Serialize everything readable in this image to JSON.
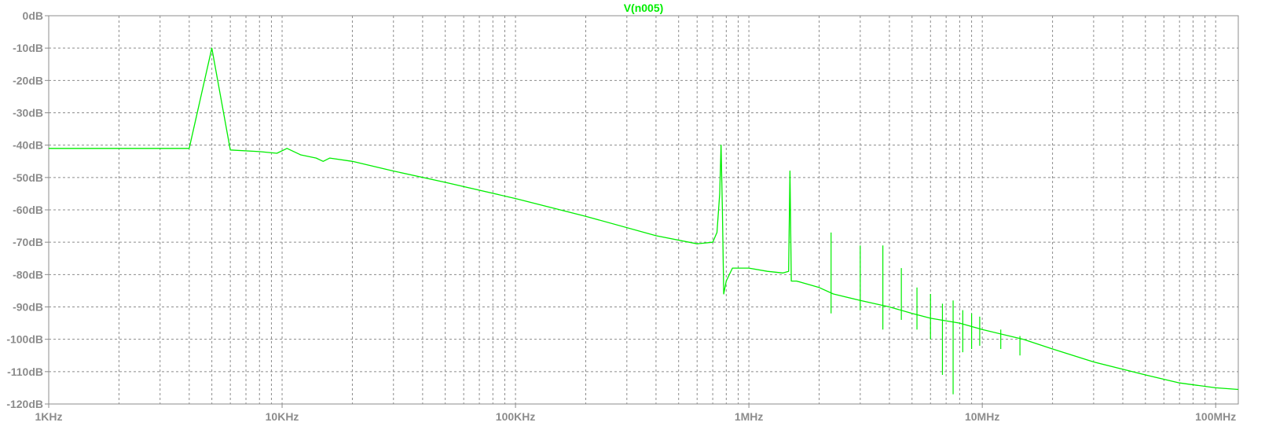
{
  "chart_data": {
    "type": "line",
    "title": "V(n005)",
    "x_scale": "log",
    "xlim": [
      1000,
      125000000
    ],
    "ylim": [
      -120,
      0
    ],
    "grid": true,
    "x_ticks": [
      {
        "value": 1000,
        "label": "1KHz"
      },
      {
        "value": 10000,
        "label": "10KHz"
      },
      {
        "value": 100000,
        "label": "100KHz"
      },
      {
        "value": 1000000,
        "label": "1MHz"
      },
      {
        "value": 10000000,
        "label": "10MHz"
      },
      {
        "value": 100000000,
        "label": "100MHz"
      }
    ],
    "y_ticks": [
      {
        "value": 0,
        "label": "0dB"
      },
      {
        "value": -10,
        "label": "-10dB"
      },
      {
        "value": -20,
        "label": "-20dB"
      },
      {
        "value": -30,
        "label": "-30dB"
      },
      {
        "value": -40,
        "label": "-40dB"
      },
      {
        "value": -50,
        "label": "-50dB"
      },
      {
        "value": -60,
        "label": "-60dB"
      },
      {
        "value": -70,
        "label": "-70dB"
      },
      {
        "value": -80,
        "label": "-80dB"
      },
      {
        "value": -90,
        "label": "-90dB"
      },
      {
        "value": -100,
        "label": "-100dB"
      },
      {
        "value": -110,
        "label": "-110dB"
      },
      {
        "value": -120,
        "label": "-120dB"
      }
    ],
    "series": [
      {
        "color": "#00ee00",
        "x": [
          1000,
          2000,
          3000,
          4000,
          5000,
          6000,
          8000,
          9500,
          10500,
          12000,
          14000,
          15000,
          16000,
          20000,
          30000,
          50000,
          100000,
          200000,
          400000,
          600000,
          700000,
          730000,
          750000,
          760000,
          770000,
          780000,
          800000,
          850000,
          1000000,
          1200000,
          1400000,
          1480000,
          1500000,
          1520000,
          1600000,
          2000000,
          2300000,
          3000000,
          4000000,
          5000000,
          6000000,
          8000000,
          10000000,
          15000000,
          20000000,
          30000000,
          50000000,
          70000000,
          100000000,
          125000000
        ],
        "y": [
          -41,
          -41,
          -41,
          -41,
          -10,
          -41.5,
          -42,
          -42.5,
          -41,
          -43,
          -44,
          -45,
          -44,
          -45,
          -48,
          -51.5,
          -56.5,
          -62,
          -68,
          -70.5,
          -70,
          -67,
          -55,
          -40,
          -60,
          -86,
          -82,
          -78,
          -78,
          -79,
          -79.5,
          -79,
          -48,
          -82,
          -82,
          -84,
          -86,
          -88,
          -90,
          -92,
          -93.5,
          -95,
          -97,
          -100,
          -103,
          -107,
          -111,
          -113.5,
          -115,
          -115.5
        ]
      }
    ],
    "spikes": [
      {
        "x": 2250000,
        "top": -67,
        "bottom": -92
      },
      {
        "x": 3000000,
        "top": -71,
        "bottom": -91
      },
      {
        "x": 3750000,
        "top": -71,
        "bottom": -97
      },
      {
        "x": 4500000,
        "top": -78,
        "bottom": -94
      },
      {
        "x": 5250000,
        "top": -84,
        "bottom": -97
      },
      {
        "x": 6000000,
        "top": -86,
        "bottom": -100
      },
      {
        "x": 6750000,
        "top": -89,
        "bottom": -111
      },
      {
        "x": 7500000,
        "top": -88,
        "bottom": -117
      },
      {
        "x": 8250000,
        "top": -91,
        "bottom": -104
      },
      {
        "x": 9000000,
        "top": -92,
        "bottom": -103
      },
      {
        "x": 9750000,
        "top": -93,
        "bottom": -102
      },
      {
        "x": 12000000,
        "top": -97,
        "bottom": -103
      },
      {
        "x": 14500000,
        "top": -99,
        "bottom": -105
      }
    ]
  }
}
